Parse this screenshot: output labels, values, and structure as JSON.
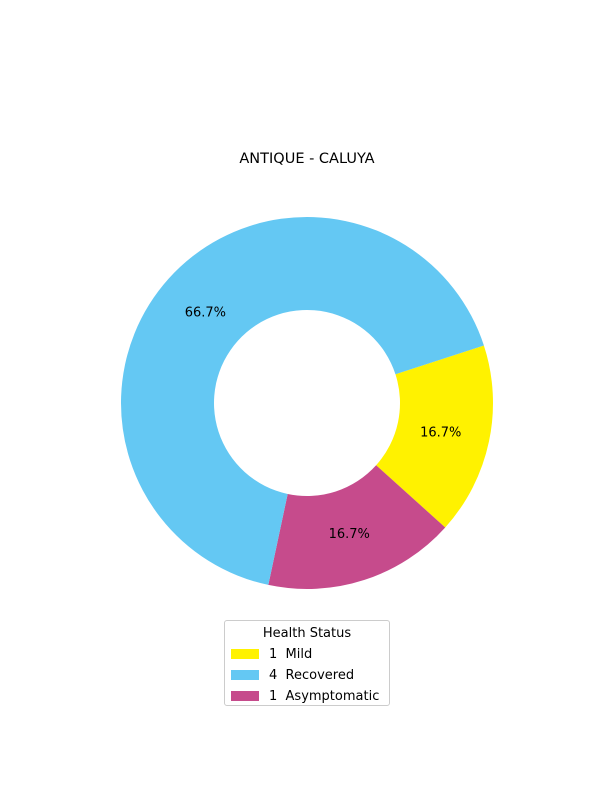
{
  "chart_data": {
    "type": "pie",
    "style": "donut",
    "title": "ANTIQUE - CALUYA",
    "slices": [
      {
        "label": "Mild",
        "count": "1",
        "value": 1,
        "percent": "16.7%",
        "color": "#fff200"
      },
      {
        "label": "Asymptomatic",
        "count": "1",
        "value": 1,
        "percent": "16.7%",
        "color": "#c64b8c"
      },
      {
        "label": "Recovered",
        "count": "4",
        "value": 4,
        "percent": "66.7%",
        "color": "#64c8f3"
      }
    ],
    "legend": {
      "title": "Health Status",
      "placement": "bottom-center",
      "order": [
        "Mild",
        "Recovered",
        "Asymptomatic"
      ]
    }
  }
}
